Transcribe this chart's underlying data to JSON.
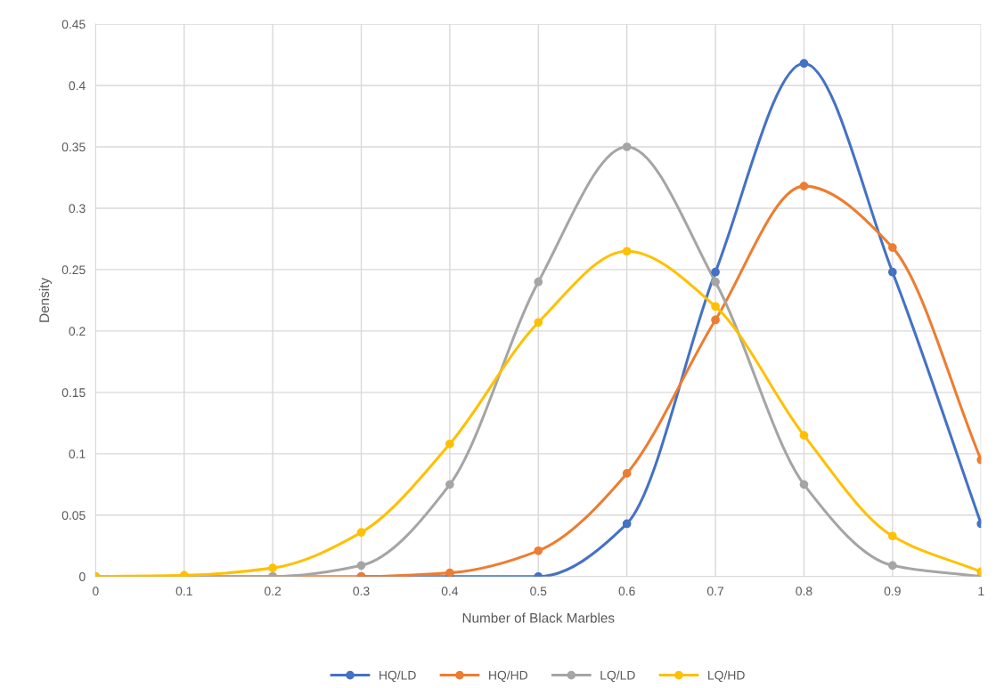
{
  "chart_data": {
    "type": "line",
    "xlabel": "Number of Black Marbles",
    "ylabel": "Density",
    "x": [
      0,
      0.1,
      0.2,
      0.3,
      0.4,
      0.5,
      0.6,
      0.7,
      0.8,
      0.9,
      1
    ],
    "series": [
      {
        "name": "HQ/LD",
        "color": "#4472c4",
        "values": [
          null,
          null,
          null,
          0,
          0,
          0,
          0.043,
          0.248,
          0.418,
          0.248,
          0.043
        ]
      },
      {
        "name": "HQ/HD",
        "color": "#ed7d31",
        "values": [
          0,
          0,
          0,
          0,
          0.003,
          0.021,
          0.084,
          0.209,
          0.318,
          0.268,
          0.095
        ]
      },
      {
        "name": "LQ/LD",
        "color": "#a5a5a5",
        "values": [
          0,
          0,
          0,
          0.009,
          0.075,
          0.24,
          0.35,
          0.24,
          0.075,
          0.009,
          0
        ]
      },
      {
        "name": "LQ/HD",
        "color": "#ffc000",
        "values": [
          0,
          0.001,
          0.007,
          0.036,
          0.108,
          0.207,
          0.265,
          0.22,
          0.115,
          0.033,
          0.004
        ]
      }
    ],
    "xlim": [
      0,
      1
    ],
    "ylim": [
      0,
      0.45
    ],
    "xticks": [
      0,
      0.1,
      0.2,
      0.3,
      0.4,
      0.5,
      0.6,
      0.7,
      0.8,
      0.9,
      1
    ],
    "yticks": [
      0,
      0.05,
      0.1,
      0.15,
      0.2,
      0.25,
      0.3,
      0.35,
      0.4,
      0.45
    ],
    "grid": true,
    "legend": "bottom",
    "marker": "circle",
    "line_style": "solid"
  }
}
